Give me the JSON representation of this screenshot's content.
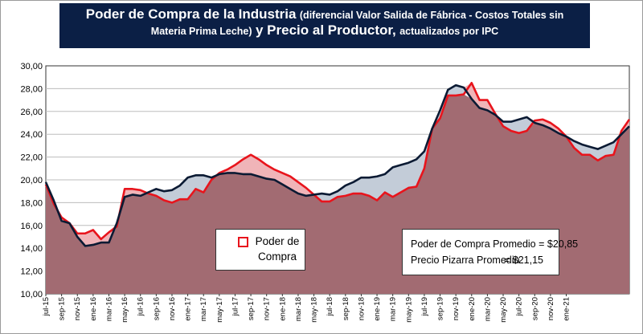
{
  "chart_data": {
    "type": "area",
    "title": {
      "part1": "Poder de Compra de la Industria",
      "part2": "(diferencial Valor Salida de Fábrica - Costos Totales sin",
      "part3": "Materia Prima Leche)",
      "part4": "y Precio al Productor,",
      "part5": "actualizados por IPC"
    },
    "ylim": [
      10,
      30
    ],
    "yticks": [
      "10,00",
      "12,00",
      "14,00",
      "16,00",
      "18,00",
      "20,00",
      "22,00",
      "24,00",
      "26,00",
      "28,00",
      "30,00"
    ],
    "x_tick_labels": [
      "jul-15",
      "sep-15",
      "nov-15",
      "ene-16",
      "mar-16",
      "may-16",
      "jul-16",
      "sep-16",
      "nov-16",
      "ene-17",
      "mar-17",
      "may-17",
      "jul-17",
      "sep-17",
      "nov-17",
      "ene-18",
      "mar-18",
      "may-18",
      "jul-18",
      "sep-18",
      "nov-18",
      "ene-19",
      "mar-19",
      "may-19",
      "jul-19",
      "sep-19",
      "nov-19",
      "ene-20",
      "mar-20",
      "may-20",
      "jul-20",
      "sep-20",
      "nov-20",
      "ene-21"
    ],
    "series": [
      {
        "name": "Poder de Compra",
        "color": "#e8141c",
        "values": [
          19.6,
          17.9,
          16.7,
          16.2,
          15.3,
          15.3,
          15.6,
          14.8,
          15.4,
          15.9,
          19.2,
          19.2,
          19.1,
          18.8,
          18.6,
          18.2,
          18.0,
          18.3,
          18.3,
          19.2,
          18.9,
          20.0,
          20.6,
          20.9,
          21.3,
          21.8,
          22.2,
          21.8,
          21.3,
          20.9,
          20.6,
          20.3,
          19.8,
          19.3,
          18.7,
          18.1,
          18.1,
          18.5,
          18.6,
          18.8,
          18.8,
          18.6,
          18.2,
          18.9,
          18.5,
          18.9,
          19.3,
          19.4,
          21.0,
          24.5,
          25.4,
          27.4,
          27.4,
          27.5,
          28.5,
          27.0,
          27.0,
          25.8,
          24.7,
          24.3,
          24.1,
          24.3,
          25.2,
          25.3,
          25.0,
          24.5,
          23.8,
          22.8,
          22.2,
          22.2,
          21.7,
          22.1,
          22.2,
          24.3,
          25.3
        ]
      },
      {
        "name": "Precio Pizarra",
        "color": "#0b1a33",
        "values": [
          19.8,
          18.2,
          16.4,
          16.2,
          15.0,
          14.2,
          14.3,
          14.5,
          14.5,
          16.2,
          18.5,
          18.7,
          18.6,
          18.9,
          19.2,
          19.0,
          19.1,
          19.5,
          20.2,
          20.4,
          20.4,
          20.2,
          20.5,
          20.6,
          20.6,
          20.5,
          20.5,
          20.3,
          20.1,
          20.0,
          19.6,
          19.2,
          18.8,
          18.6,
          18.7,
          18.8,
          18.7,
          19.0,
          19.5,
          19.8,
          20.2,
          20.2,
          20.3,
          20.5,
          21.1,
          21.3,
          21.5,
          21.8,
          22.5,
          24.5,
          26.1,
          27.9,
          28.3,
          28.1,
          27.1,
          26.3,
          26.1,
          25.7,
          25.1,
          25.1,
          25.3,
          25.5,
          25.0,
          24.8,
          24.5,
          24.1,
          23.8,
          23.4,
          23.1,
          22.9,
          22.7,
          23.0,
          23.3,
          24.0,
          24.7
        ]
      }
    ],
    "legend": {
      "label_line1": "Poder de",
      "label_line2": "Compra"
    },
    "note": {
      "row1_label": "Poder de Compra Promedio =",
      "row1_value": "$20,85",
      "row2_label": "Precio Pizarra Promedio",
      "row2_value": "=  $21,15"
    },
    "colors": {
      "area_fill": "#a26b72",
      "gap_fill": "#c3ccd8",
      "red_gap_fill": "#f0b4b8"
    }
  }
}
